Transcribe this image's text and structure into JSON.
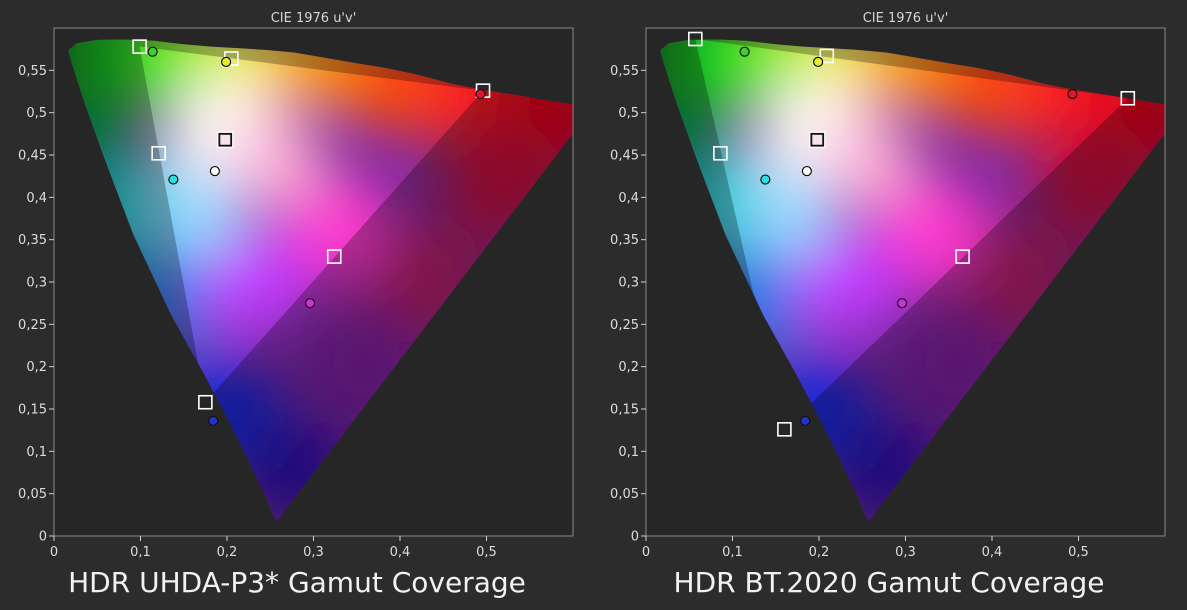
{
  "chart_data": [
    {
      "type": "scatter",
      "title": "CIE 1976 u'v'",
      "caption": "HDR UHDA-P3* Gamut Coverage",
      "xlim": [
        0,
        0.6
      ],
      "ylim": [
        0,
        0.6
      ],
      "x_ticks": [
        "0",
        "0,1",
        "0,2",
        "0,3",
        "0,4",
        "0,5"
      ],
      "y_ticks": [
        "0",
        "0,05",
        "0,1",
        "0,15",
        "0,2",
        "0,25",
        "0,3",
        "0,35",
        "0,4",
        "0,45",
        "0,5",
        "0,55"
      ],
      "grid": false,
      "targets": [
        {
          "u": 0.496,
          "v": 0.526
        },
        {
          "u": 0.099,
          "v": 0.578
        },
        {
          "u": 0.175,
          "v": 0.158
        },
        {
          "u": 0.205,
          "v": 0.564
        },
        {
          "u": 0.121,
          "v": 0.452
        },
        {
          "u": 0.324,
          "v": 0.33
        },
        {
          "u": 0.198,
          "v": 0.468
        }
      ],
      "measured": [
        {
          "u": 0.493,
          "v": 0.522,
          "color": "#e8112a"
        },
        {
          "u": 0.114,
          "v": 0.572,
          "color": "#3fcf2e"
        },
        {
          "u": 0.184,
          "v": 0.136,
          "color": "#2233cc"
        },
        {
          "u": 0.199,
          "v": 0.56,
          "color": "#eaee2a"
        },
        {
          "u": 0.138,
          "v": 0.421,
          "color": "#27e0df"
        },
        {
          "u": 0.296,
          "v": 0.275,
          "color": "#d12fd8"
        },
        {
          "u": 0.186,
          "v": 0.431,
          "color": "#ffffff"
        }
      ]
    },
    {
      "type": "scatter",
      "title": "CIE 1976 u'v'",
      "caption": "HDR BT.2020  Gamut Coverage",
      "xlim": [
        0,
        0.6
      ],
      "ylim": [
        0,
        0.6
      ],
      "x_ticks": [
        "0",
        "0,1",
        "0,2",
        "0,3",
        "0,4",
        "0,5"
      ],
      "y_ticks": [
        "0",
        "0,05",
        "0,1",
        "0,15",
        "0,2",
        "0,25",
        "0,3",
        "0,35",
        "0,4",
        "0,45",
        "0,5",
        "0,55"
      ],
      "grid": false,
      "targets": [
        {
          "u": 0.557,
          "v": 0.517
        },
        {
          "u": 0.057,
          "v": 0.587
        },
        {
          "u": 0.16,
          "v": 0.126
        },
        {
          "u": 0.209,
          "v": 0.567
        },
        {
          "u": 0.086,
          "v": 0.452
        },
        {
          "u": 0.366,
          "v": 0.33
        },
        {
          "u": 0.198,
          "v": 0.468
        }
      ],
      "measured": [
        {
          "u": 0.493,
          "v": 0.522,
          "color": "#e8112a"
        },
        {
          "u": 0.114,
          "v": 0.572,
          "color": "#3fcf2e"
        },
        {
          "u": 0.184,
          "v": 0.136,
          "color": "#2233cc"
        },
        {
          "u": 0.199,
          "v": 0.56,
          "color": "#eaee2a"
        },
        {
          "u": 0.138,
          "v": 0.421,
          "color": "#27e0df"
        },
        {
          "u": 0.296,
          "v": 0.275,
          "color": "#d12fd8"
        },
        {
          "u": 0.186,
          "v": 0.431,
          "color": "#ffffff"
        }
      ]
    }
  ]
}
